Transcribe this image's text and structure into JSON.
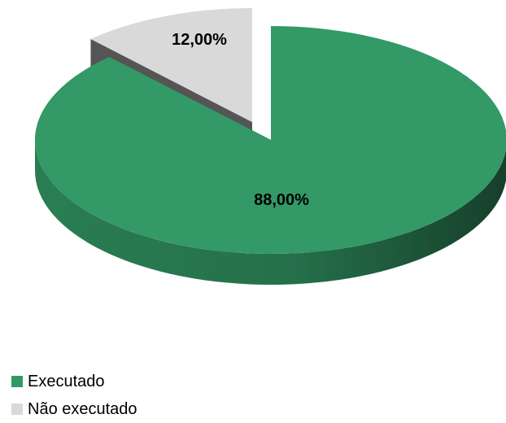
{
  "chart_data": {
    "type": "pie",
    "style": "3d-exploded",
    "categories": [
      "Executado",
      "Não executado"
    ],
    "values": [
      88.0,
      12.0
    ],
    "data_labels": [
      "88,00%",
      "12,00%"
    ],
    "colors": [
      "#339966",
      "#d9d9d9"
    ],
    "legend_position": "bottom-left"
  },
  "legend": {
    "items": [
      {
        "label": "Executado",
        "color": "#339966"
      },
      {
        "label": "Não executado",
        "color": "#d9d9d9"
      }
    ]
  }
}
